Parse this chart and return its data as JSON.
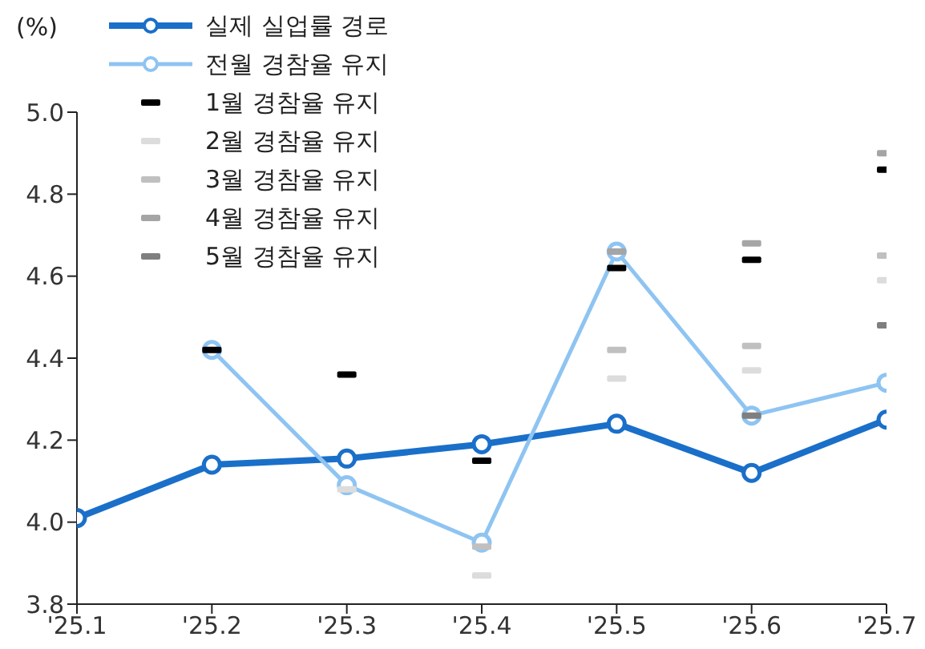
{
  "chart_data": {
    "type": "line",
    "ylabel": "(%)",
    "categories": [
      "'25.1",
      "'25.2",
      "'25.3",
      "'25.4",
      "'25.5",
      "'25.6",
      "'25.7"
    ],
    "ylim": [
      3.8,
      5.0
    ],
    "yticks": [
      {
        "value": 3.8,
        "label": "3.8"
      },
      {
        "value": 4.0,
        "label": "4.0"
      },
      {
        "value": 4.2,
        "label": "4.2"
      },
      {
        "value": 4.4,
        "label": "4.4"
      },
      {
        "value": 4.6,
        "label": "4.6"
      },
      {
        "value": 4.8,
        "label": "4.8"
      },
      {
        "value": 5.0,
        "label": "5.0"
      }
    ],
    "grid": false,
    "legend": "top left",
    "marker": "circle",
    "line_style": "solid",
    "series": [
      {
        "name": "실제 실업률 경로",
        "color": "#1a6fc9",
        "values": [
          4.01,
          4.14,
          4.155,
          4.19,
          4.24,
          4.12,
          4.25
        ]
      },
      {
        "name": "전월 경참율 유지",
        "color": "#8ec4f2",
        "values": [
          null,
          4.42,
          4.09,
          3.95,
          4.66,
          4.26,
          4.34
        ]
      },
      {
        "name": "1월 경참율 유지",
        "type": "scatter",
        "marker": "square",
        "color": "#000000",
        "values": [
          null,
          4.42,
          4.36,
          4.15,
          4.62,
          4.64,
          4.86
        ]
      },
      {
        "name": "2월 경참율 유지",
        "type": "scatter",
        "marker": "square",
        "color": "#dcdcdc",
        "values": [
          null,
          null,
          4.08,
          3.87,
          4.35,
          4.37,
          4.59
        ]
      },
      {
        "name": "3월 경참율 유지",
        "type": "scatter",
        "marker": "square",
        "color": "#c0c0c0",
        "values": [
          null,
          null,
          null,
          3.94,
          4.42,
          4.43,
          4.65
        ]
      },
      {
        "name": "4월 경참율 유지",
        "type": "scatter",
        "marker": "square",
        "color": "#a5a5a5",
        "values": [
          null,
          null,
          null,
          null,
          4.66,
          4.68,
          4.9
        ]
      },
      {
        "name": "5월 경참율 유지",
        "type": "scatter",
        "marker": "square",
        "color": "#7f7f7f",
        "values": [
          null,
          null,
          null,
          null,
          null,
          4.26,
          4.48
        ]
      }
    ]
  }
}
